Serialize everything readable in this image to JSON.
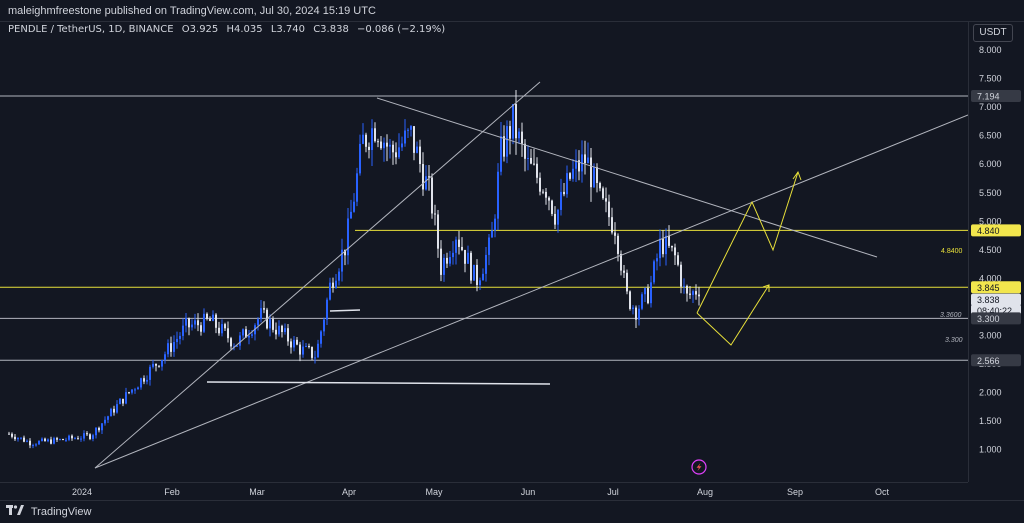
{
  "header": {
    "publisher_line": "maleighmfreestone published on TradingView.com, Jul 30, 2024 15:19 UTC"
  },
  "legend": {
    "symbol": "PENDLE / TetherUS, 1D, BINANCE",
    "open": "O3.925",
    "high": "H4.035",
    "low": "L3.740",
    "close": "C3.838",
    "change": "−0.086 (−2.19%)"
  },
  "price_scale": {
    "currency": "USDT",
    "ticks": [
      "8.000",
      "7.500",
      "7.000",
      "6.500",
      "6.000",
      "5.500",
      "5.000",
      "4.500",
      "4.000",
      "3.500",
      "3.000",
      "2.500",
      "2.000",
      "1.500",
      "1.000"
    ],
    "tick_values": [
      8,
      7.5,
      7,
      6.5,
      6,
      5.5,
      5,
      4.5,
      4,
      3.5,
      3,
      2.5,
      2,
      1.5,
      1
    ],
    "labels": [
      {
        "text": "7.194",
        "value": 7.194,
        "style": "grey"
      },
      {
        "text": "4.840",
        "value": 4.84,
        "style": "yellow"
      },
      {
        "text": "3.845",
        "value": 3.845,
        "style": "yellow"
      },
      {
        "text": "3.838",
        "value": 3.838,
        "style": "current"
      },
      {
        "text": "08:40:22",
        "value": 3.838,
        "style": "countdown"
      },
      {
        "text": "3.300",
        "value": 3.3,
        "style": "grey"
      },
      {
        "text": "2.566",
        "value": 2.566,
        "style": "grey"
      }
    ]
  },
  "chart_labels": {
    "level_4840": "4.8400",
    "level_3360": "3.3600",
    "level_3300": "3.300"
  },
  "time_axis": {
    "labels": [
      "2024",
      "Feb",
      "Mar",
      "Apr",
      "May",
      "Jun",
      "Jul",
      "Aug",
      "Sep",
      "Oct"
    ]
  },
  "footer": {
    "brand": "TradingView"
  },
  "colors": {
    "background": "#131722",
    "bull": "#2962ff",
    "bear": "#e0e3eb",
    "projection": "#e8e03a",
    "trendline": "#b2b5be",
    "yellow_label": "#f2e64d"
  },
  "icons": {
    "flash": "lightning-bolt-icon",
    "brand": "tradingview-logo-icon"
  }
}
